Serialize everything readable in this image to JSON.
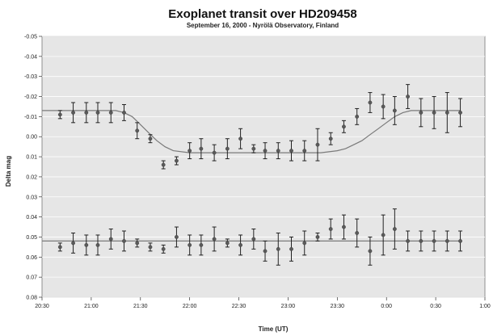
{
  "chart_data": {
    "type": "scatter",
    "title": "Exoplanet transit over HD209458",
    "subtitle": "September 16, 2000 - Nyrölä Observatory, Finland",
    "xlabel": "Time (UT)",
    "ylabel": "Delta mag",
    "x_ticks": [
      "20:30",
      "21:00",
      "21:30",
      "22:00",
      "22:30",
      "23:00",
      "23:30",
      "0:00",
      "0:30",
      "1:00"
    ],
    "y_ticks": [
      "-0.05",
      "-0.04",
      "-0.03",
      "-0.02",
      "-0.01",
      "0.00",
      "0.01",
      "0.02",
      "0.03",
      "0.04",
      "0.05",
      "0.06",
      "0.07",
      "0.08"
    ],
    "xlim": [
      "20:30",
      "1:00"
    ],
    "ylim": [
      -0.05,
      0.08
    ],
    "y_inverted": true,
    "background": "#e6e6e6",
    "marker_color": "#5a5a5a",
    "errorbar_color": "#222222",
    "fit_color": "#7a7a7a",
    "grid": "horizontal",
    "series": [
      {
        "x": [
          "20:41",
          "20:49",
          "20:57",
          "21:04",
          "21:12",
          "21:20",
          "21:28",
          "21:36",
          "21:44",
          "21:52",
          "22:00",
          "22:07",
          "22:15",
          "22:23",
          "22:31",
          "22:39",
          "22:46",
          "22:54",
          "23:02",
          "23:10",
          "23:18",
          "23:26",
          "23:34",
          "23:42",
          "23:50",
          "23:58",
          "0:05",
          "0:13",
          "0:21",
          "0:29",
          "0:37",
          "0:45"
        ],
        "y": [
          -0.011,
          -0.012,
          -0.012,
          -0.012,
          -0.012,
          -0.012,
          -0.003,
          0.001,
          0.014,
          0.012,
          0.007,
          0.006,
          0.008,
          0.006,
          0.001,
          0.006,
          0.007,
          0.007,
          0.007,
          0.007,
          0.004,
          0.001,
          -0.005,
          -0.01,
          -0.017,
          -0.015,
          -0.013,
          -0.02,
          -0.012,
          -0.012,
          -0.012,
          -0.012
        ],
        "err": [
          0.002,
          0.005,
          0.005,
          0.005,
          0.005,
          0.004,
          0.004,
          0.002,
          0.002,
          0.002,
          0.004,
          0.005,
          0.004,
          0.005,
          0.005,
          0.002,
          0.004,
          0.004,
          0.005,
          0.005,
          0.008,
          0.003,
          0.003,
          0.004,
          0.005,
          0.006,
          0.007,
          0.006,
          0.007,
          0.008,
          0.01,
          0.007
        ]
      },
      {
        "x": [
          "20:41",
          "20:49",
          "20:57",
          "21:04",
          "21:12",
          "21:20",
          "21:28",
          "21:36",
          "21:44",
          "21:52",
          "22:00",
          "22:07",
          "22:15",
          "22:23",
          "22:31",
          "22:39",
          "22:46",
          "22:54",
          "23:02",
          "23:10",
          "23:18",
          "23:26",
          "23:34",
          "23:42",
          "23:50",
          "23:58",
          "0:05",
          "0:13",
          "0:21",
          "0:29",
          "0:37",
          "0:45"
        ],
        "y": [
          0.055,
          0.053,
          0.054,
          0.054,
          0.051,
          0.052,
          0.053,
          0.055,
          0.056,
          0.05,
          0.054,
          0.054,
          0.051,
          0.053,
          0.054,
          0.051,
          0.057,
          0.056,
          0.056,
          0.053,
          0.05,
          0.046,
          0.045,
          0.048,
          0.057,
          0.049,
          0.046,
          0.052,
          0.052,
          0.052,
          0.052,
          0.052
        ],
        "err": [
          0.002,
          0.005,
          0.005,
          0.005,
          0.005,
          0.005,
          0.002,
          0.002,
          0.002,
          0.005,
          0.005,
          0.005,
          0.006,
          0.002,
          0.005,
          0.005,
          0.005,
          0.008,
          0.006,
          0.006,
          0.002,
          0.005,
          0.006,
          0.007,
          0.007,
          0.01,
          0.01,
          0.005,
          0.005,
          0.005,
          0.005,
          0.005
        ]
      }
    ],
    "fit_curves": [
      {
        "x": [
          "20:30",
          "21:15",
          "21:20",
          "21:25",
          "21:30",
          "21:35",
          "21:40",
          "21:45",
          "21:50",
          "22:00",
          "23:10",
          "23:20",
          "23:30",
          "23:35",
          "23:40",
          "23:45",
          "23:50",
          "23:55",
          "0:00",
          "0:05",
          "0:10",
          "0:15",
          "0:45"
        ],
        "y": [
          -0.013,
          -0.013,
          -0.012,
          -0.01,
          -0.006,
          -0.002,
          0.002,
          0.005,
          0.007,
          0.008,
          0.008,
          0.008,
          0.007,
          0.006,
          0.004,
          0.002,
          -0.001,
          -0.004,
          -0.007,
          -0.01,
          -0.012,
          -0.013,
          -0.013
        ]
      },
      {
        "x": [
          "20:30",
          "0:45"
        ],
        "y": [
          0.052,
          0.052
        ]
      }
    ]
  }
}
